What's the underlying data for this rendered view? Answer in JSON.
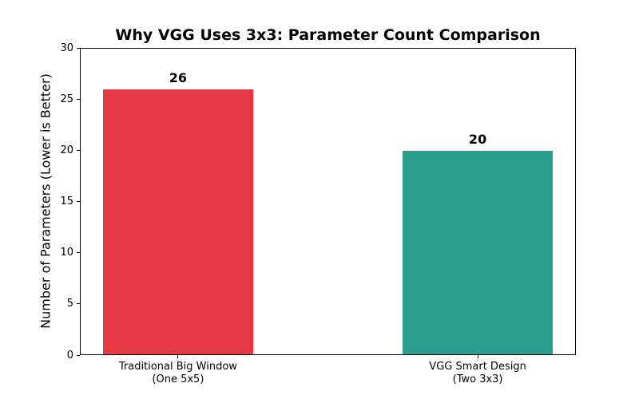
{
  "chart_data": {
    "type": "bar",
    "title": "Why VGG Uses 3x3: Parameter Count Comparison",
    "xlabel": "",
    "ylabel": "Number of Parameters (Lower is Better)",
    "categories": [
      "Traditional Big Window\n(One 5x5)",
      "VGG Smart Design\n(Two 3x3)"
    ],
    "values": [
      26,
      20
    ],
    "bar_value_labels": [
      "26",
      "20"
    ],
    "bar_colors": [
      "#e63946",
      "#2a9d8f"
    ],
    "ylim": [
      0,
      30
    ],
    "yticks": [
      0,
      5,
      10,
      15,
      20,
      25,
      30
    ],
    "grid": false,
    "legend": "none",
    "background_color": "#ffffff",
    "text_color": "#000000"
  }
}
